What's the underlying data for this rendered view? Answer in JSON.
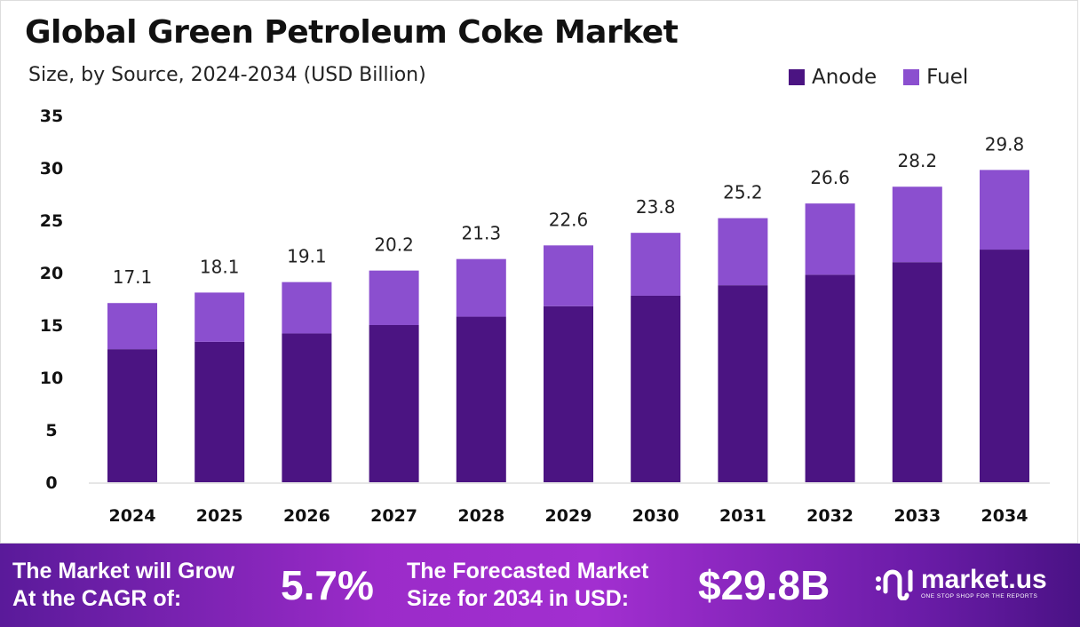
{
  "chart_data": {
    "type": "bar",
    "stacked": true,
    "title": "Global  Green Petroleum Coke Market",
    "subtitle": "Size, by Source, 2024-2034 (USD Billion)",
    "categories": [
      "2024",
      "2025",
      "2026",
      "2027",
      "2028",
      "2029",
      "2030",
      "2031",
      "2032",
      "2033",
      "2034"
    ],
    "series": [
      {
        "name": "Anode",
        "color": "#4b1482",
        "values": [
          12.7,
          13.4,
          14.2,
          15.0,
          15.8,
          16.8,
          17.8,
          18.8,
          19.8,
          21.0,
          22.2
        ]
      },
      {
        "name": "Fuel",
        "color": "#8b4fcf",
        "values": [
          4.4,
          4.7,
          4.9,
          5.2,
          5.5,
          5.8,
          6.0,
          6.4,
          6.8,
          7.2,
          7.6
        ]
      }
    ],
    "totals": [
      "17.1",
      "18.1",
      "19.1",
      "20.2",
      "21.3",
      "22.6",
      "23.8",
      "25.2",
      "26.6",
      "28.2",
      "29.8"
    ],
    "ylim": [
      0,
      35
    ],
    "yticks": [
      "0",
      "5",
      "10",
      "15",
      "20",
      "25",
      "30",
      "35"
    ],
    "grid": false,
    "legend_position": "top-right"
  },
  "footer": {
    "cagr_label_1": "The Market will Grow",
    "cagr_label_2": "At the CAGR of:",
    "cagr_value": "5.7%",
    "forecast_label_1": "The Forecasted Market",
    "forecast_label_2": "Size for 2034 in USD:",
    "forecast_value": "$29.8B",
    "logo_text": "market.us",
    "logo_tagline": "ONE STOP SHOP FOR THE REPORTS"
  }
}
